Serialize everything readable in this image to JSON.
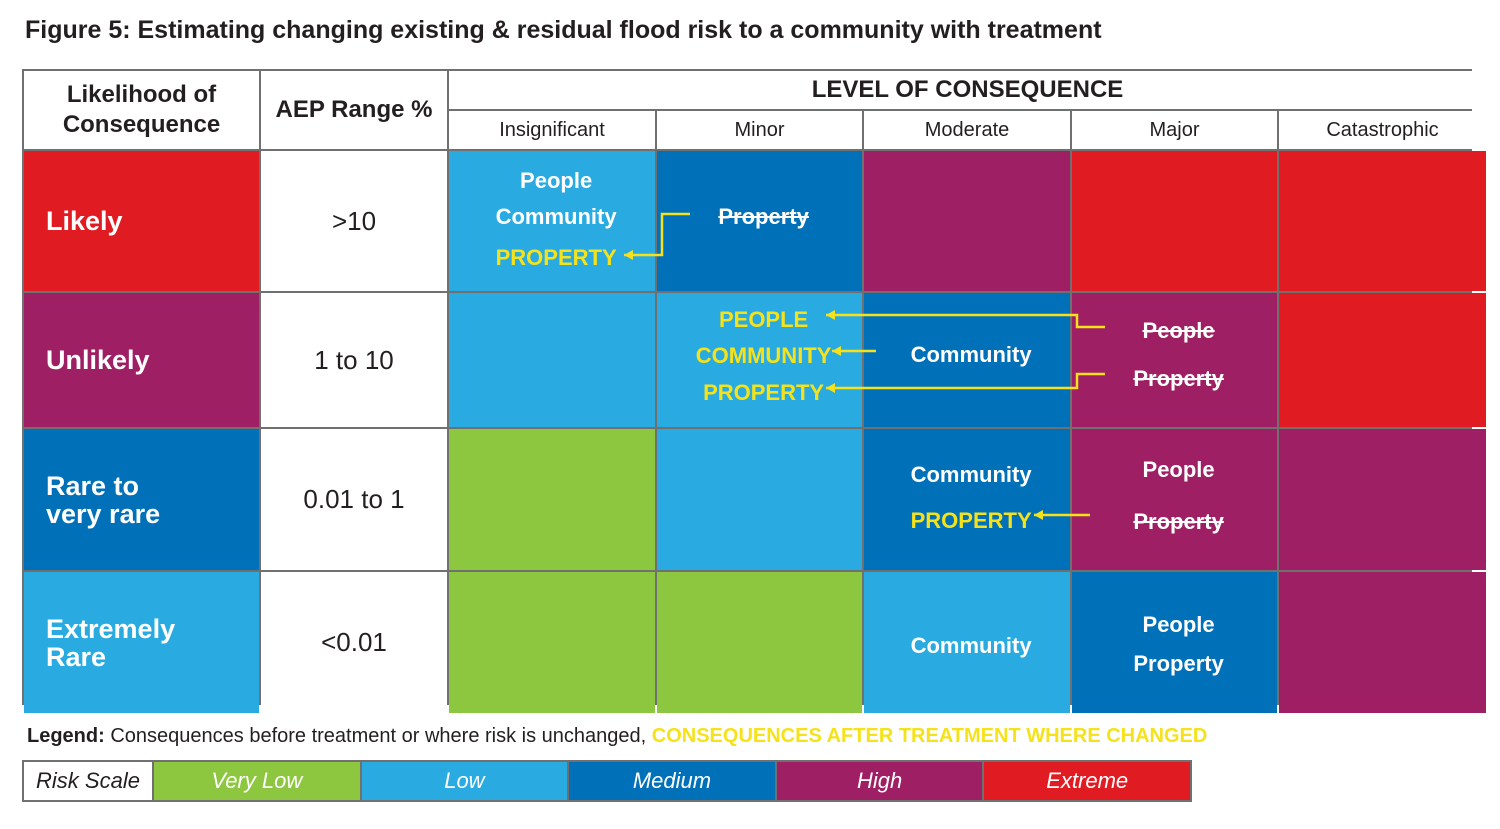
{
  "title": "Figure 5: Estimating changing existing & residual flood risk to a community with treatment",
  "colors": {
    "very_low": "#8dc63f",
    "low": "#29abe2",
    "medium": "#0071b9",
    "high": "#9e1f63",
    "extreme": "#e01b22",
    "after_treatment": "#f5e21b",
    "grid": "#707070"
  },
  "header": {
    "likelihood": "Likelihood of Consequence",
    "aep": "AEP Range %",
    "consequence": "LEVEL OF CONSEQUENCE",
    "columns": [
      "Insignificant",
      "Minor",
      "Moderate",
      "Major",
      "Catastrophic"
    ]
  },
  "rows": [
    {
      "likelihood": "Likely",
      "aep": ">10",
      "color_level": "extreme",
      "cells": [
        {
          "level": "low",
          "labels": [
            {
              "text": "People",
              "style": "before"
            },
            {
              "text": "Community",
              "style": "before"
            },
            {
              "text": "PROPERTY",
              "style": "after"
            }
          ]
        },
        {
          "level": "medium",
          "labels": [
            {
              "text": "Property",
              "style": "struck"
            }
          ]
        },
        {
          "level": "high",
          "labels": []
        },
        {
          "level": "extreme",
          "labels": []
        },
        {
          "level": "extreme",
          "labels": []
        }
      ]
    },
    {
      "likelihood": "Unlikely",
      "aep": "1 to 10",
      "color_level": "high",
      "cells": [
        {
          "level": "low",
          "labels": []
        },
        {
          "level": "low",
          "labels": [
            {
              "text": "PEOPLE",
              "style": "after"
            },
            {
              "text": "COMMUNITY",
              "style": "after"
            },
            {
              "text": "PROPERTY",
              "style": "after"
            }
          ]
        },
        {
          "level": "medium",
          "labels": [
            {
              "text": "Community",
              "style": "before"
            }
          ]
        },
        {
          "level": "high",
          "labels": [
            {
              "text": "People",
              "style": "struck"
            },
            {
              "text": "Property",
              "style": "struck"
            }
          ]
        },
        {
          "level": "extreme",
          "labels": []
        }
      ]
    },
    {
      "likelihood": "Rare to very rare",
      "aep": "0.01 to 1",
      "color_level": "medium",
      "cells": [
        {
          "level": "very_low",
          "labels": []
        },
        {
          "level": "low",
          "labels": []
        },
        {
          "level": "medium",
          "labels": [
            {
              "text": "Community",
              "style": "before"
            },
            {
              "text": "PROPERTY",
              "style": "after"
            }
          ]
        },
        {
          "level": "high",
          "labels": [
            {
              "text": "People",
              "style": "before"
            },
            {
              "text": "Property",
              "style": "struck"
            }
          ]
        },
        {
          "level": "high",
          "labels": []
        }
      ]
    },
    {
      "likelihood": "Extremely Rare",
      "aep": "<0.01",
      "color_level": "low",
      "cells": [
        {
          "level": "very_low",
          "labels": []
        },
        {
          "level": "very_low",
          "labels": []
        },
        {
          "level": "low",
          "labels": [
            {
              "text": "Community",
              "style": "before"
            }
          ]
        },
        {
          "level": "medium",
          "labels": [
            {
              "text": "People",
              "style": "before"
            },
            {
              "text": "Property",
              "style": "before"
            }
          ]
        },
        {
          "level": "high",
          "labels": []
        }
      ]
    }
  ],
  "legend": {
    "key": "Legend:",
    "before_text": "Consequences before treatment or where risk is unchanged,",
    "after_text": "CONSEQUENCES AFTER TREATMENT WHERE CHANGED"
  },
  "risk_scale": {
    "label": "Risk Scale",
    "levels": [
      {
        "name": "Very Low",
        "level": "very_low"
      },
      {
        "name": "Low",
        "level": "low"
      },
      {
        "name": "Medium",
        "level": "medium"
      },
      {
        "name": "High",
        "level": "high"
      },
      {
        "name": "Extreme",
        "level": "extreme"
      }
    ]
  }
}
